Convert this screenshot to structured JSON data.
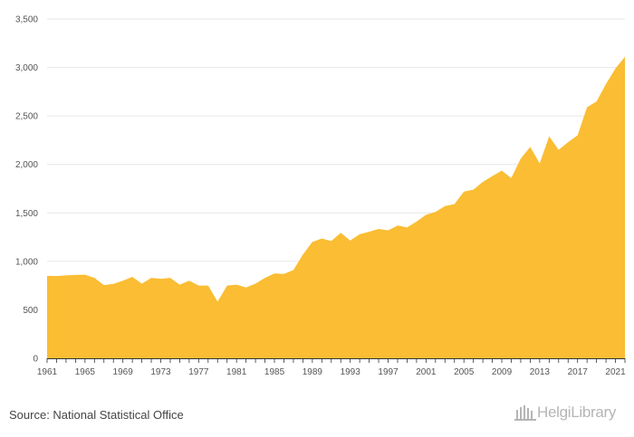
{
  "chart_data": {
    "type": "area",
    "title": "",
    "xlabel": "",
    "ylabel": "",
    "ylim": [
      0,
      3500
    ],
    "yticks": [
      0,
      500,
      1000,
      1500,
      2000,
      2500,
      3000,
      3500
    ],
    "ytick_labels": [
      "0",
      "500",
      "1,000",
      "1,500",
      "2,000",
      "2,500",
      "3,000",
      "3,500"
    ],
    "xticks": [
      1961,
      1965,
      1969,
      1973,
      1977,
      1981,
      1985,
      1989,
      1993,
      1997,
      2001,
      2005,
      2009,
      2013,
      2017,
      2021
    ],
    "xlim": [
      1961,
      2022
    ],
    "grid": "horizontal",
    "fill_color": "#fabd33",
    "x": [
      1961,
      1962,
      1963,
      1964,
      1965,
      1966,
      1967,
      1968,
      1969,
      1970,
      1971,
      1972,
      1973,
      1974,
      1975,
      1976,
      1977,
      1978,
      1979,
      1980,
      1981,
      1982,
      1983,
      1984,
      1985,
      1986,
      1987,
      1988,
      1989,
      1990,
      1991,
      1992,
      1993,
      1994,
      1995,
      1996,
      1997,
      1998,
      1999,
      2000,
      2001,
      2002,
      2003,
      2004,
      2005,
      2006,
      2007,
      2008,
      2009,
      2010,
      2011,
      2012,
      2013,
      2014,
      2015,
      2016,
      2017,
      2018,
      2019,
      2020,
      2021,
      2022
    ],
    "values": [
      850,
      848,
      855,
      860,
      862,
      830,
      755,
      768,
      800,
      840,
      770,
      830,
      820,
      830,
      760,
      800,
      750,
      750,
      585,
      750,
      760,
      730,
      770,
      830,
      875,
      870,
      910,
      1070,
      1200,
      1235,
      1210,
      1295,
      1215,
      1280,
      1305,
      1335,
      1320,
      1370,
      1350,
      1410,
      1480,
      1510,
      1570,
      1590,
      1720,
      1740,
      1820,
      1880,
      1935,
      1860,
      2060,
      2180,
      2010,
      2290,
      2150,
      2230,
      2300,
      2590,
      2650,
      2830,
      2990,
      3110
    ]
  },
  "footer": {
    "source": "Source: National Statistical Office",
    "logo_text": "HelgiLibrary"
  }
}
